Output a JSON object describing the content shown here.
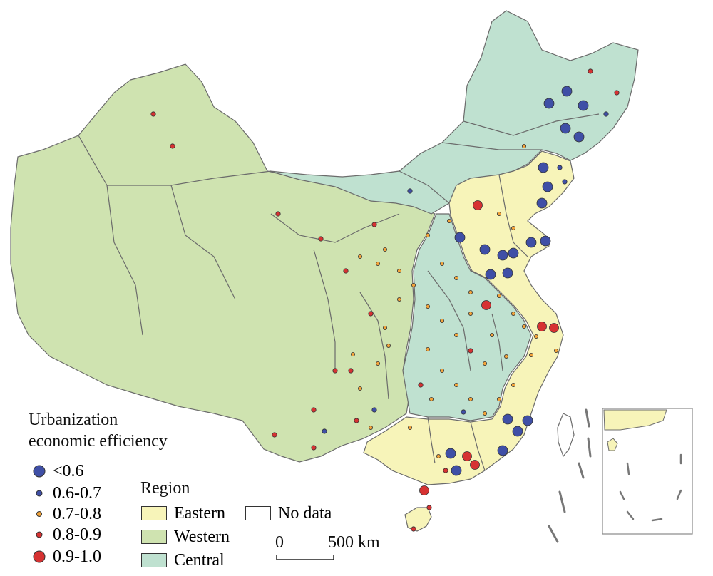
{
  "colors": {
    "eastern": "#f7f4b9",
    "western": "#cfe3b0",
    "central": "#bfe1d0",
    "border": "#6b6b6b",
    "point_lt06": "#3f4fa6",
    "point_06_07": "#3f4fa6",
    "point_07_08": "#f2a33a",
    "point_08_09": "#d63232",
    "point_09_10": "#d63232"
  },
  "legend": {
    "efficiency_title_line1": "Urbanization",
    "efficiency_title_line2": "economic efficiency",
    "classes": [
      {
        "label": "<0.6",
        "color_key": "point_lt06",
        "size": "large"
      },
      {
        "label": "0.6-0.7",
        "color_key": "point_06_07",
        "size": "small"
      },
      {
        "label": "0.7-0.8",
        "color_key": "point_07_08",
        "size": "small"
      },
      {
        "label": "0.8-0.9",
        "color_key": "point_08_09",
        "size": "small"
      },
      {
        "label": "0.9-1.0",
        "color_key": "point_09_10",
        "size": "large"
      }
    ],
    "region_title": "Region",
    "regions": [
      {
        "label": "Eastern",
        "color_key": "eastern"
      },
      {
        "label": "Western",
        "color_key": "western"
      },
      {
        "label": "Central",
        "color_key": "central"
      },
      {
        "label": "No data",
        "color_key": "none"
      }
    ]
  },
  "scale_bar": {
    "start": "0",
    "end": "500 km"
  }
}
